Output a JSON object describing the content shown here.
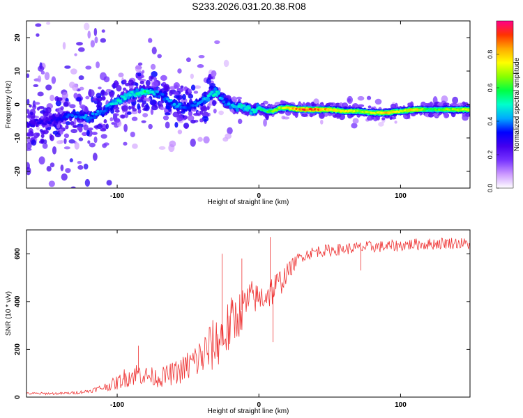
{
  "chart_data": [
    {
      "type": "heatmap",
      "title": "S233.2026.031.20.38.R08",
      "xlabel": "Height of straight line (km)",
      "ylabel": "Frequency (Hz)",
      "xlim": [
        -164,
        149
      ],
      "ylim": [
        -25,
        25
      ],
      "x_ticks": [
        -100,
        0,
        100
      ],
      "y_ticks": [
        -20,
        -10,
        0,
        10,
        20
      ],
      "colorbar": {
        "label": "Normalized spectral amplitude",
        "range": [
          0.0,
          1.0
        ],
        "ticks": [
          "0.0",
          "0.2",
          "0.4",
          "0.6",
          "0.8"
        ],
        "colors": [
          "#ffffff",
          "#cc99ff",
          "#7733ff",
          "#4400ee",
          "#0000ff",
          "#00aaff",
          "#00ffcc",
          "#00ff44",
          "#88ff00",
          "#ffff00",
          "#ffaa00",
          "#ff3300",
          "#ff0088"
        ]
      },
      "ridge": {
        "x": [
          -164,
          -150,
          -140,
          -130,
          -120,
          -110,
          -100,
          -90,
          -80,
          -70,
          -60,
          -50,
          -40,
          -30,
          -25,
          -20,
          -15,
          -10,
          -5,
          0,
          5,
          10,
          15,
          20,
          30,
          40,
          50,
          60,
          70,
          80,
          90,
          100,
          110,
          120,
          130,
          140,
          149
        ],
        "freq": [
          -6,
          -5,
          -4,
          -3,
          -4,
          -2,
          1,
          3,
          4,
          3,
          0,
          -1,
          1,
          4,
          1,
          0,
          -1,
          -1,
          -2,
          -1,
          -2,
          -2,
          -1,
          -1,
          -1.5,
          -1.5,
          -1.5,
          -2,
          -2,
          -2.5,
          -2.5,
          -2,
          -1.5,
          -1.5,
          -1.5,
          -1.5,
          -1.5
        ],
        "amplitude": [
          0.3,
          0.3,
          0.35,
          0.4,
          0.45,
          0.4,
          0.55,
          0.5,
          0.6,
          0.4,
          0.45,
          0.4,
          0.45,
          0.55,
          0.4,
          0.45,
          0.5,
          0.55,
          0.5,
          0.55,
          0.6,
          0.7,
          0.75,
          0.8,
          0.95,
          0.95,
          0.85,
          0.8,
          0.75,
          0.75,
          0.85,
          0.75,
          0.85,
          0.6,
          0.7,
          0.75,
          0.8
        ]
      }
    },
    {
      "type": "line",
      "xlabel": "Height of straight line (km)",
      "ylabel": "SNR (10 * v/v)",
      "xlim": [
        -164,
        149
      ],
      "ylim": [
        0,
        700
      ],
      "x_ticks": [
        -100,
        0,
        100
      ],
      "y_ticks": [
        0,
        200,
        400,
        600
      ],
      "line_color": "#ee3333",
      "series": [
        {
          "name": "SNR",
          "x": [
            -164,
            -150,
            -140,
            -130,
            -120,
            -110,
            -100,
            -95,
            -90,
            -85,
            -80,
            -75,
            -70,
            -65,
            -60,
            -55,
            -50,
            -45,
            -40,
            -35,
            -30,
            -25,
            -20,
            -15,
            -10,
            -5,
            0,
            5,
            10,
            15,
            20,
            25,
            30,
            40,
            50,
            60,
            70,
            80,
            90,
            100,
            110,
            120,
            130,
            140,
            149
          ],
          "y": [
            15,
            15,
            15,
            18,
            25,
            40,
            60,
            80,
            90,
            100,
            90,
            85,
            80,
            90,
            100,
            110,
            130,
            150,
            170,
            200,
            230,
            260,
            300,
            340,
            380,
            420,
            410,
            430,
            450,
            480,
            520,
            560,
            590,
            610,
            615,
            620,
            625,
            630,
            630,
            635,
            640,
            640,
            645,
            645,
            640
          ],
          "noise": [
            5,
            5,
            5,
            6,
            8,
            15,
            30,
            40,
            45,
            50,
            40,
            40,
            40,
            45,
            50,
            55,
            70,
            80,
            90,
            110,
            110,
            120,
            120,
            100,
            90,
            70,
            60,
            70,
            70,
            60,
            40,
            30,
            25,
            25,
            25,
            25,
            25,
            25,
            25,
            25,
            25,
            25,
            25,
            25,
            25
          ]
        }
      ],
      "annotations": [
        {
          "x": -26,
          "y": 600
        },
        {
          "x": -12,
          "y": 580
        },
        {
          "x": 8,
          "y": 670
        },
        {
          "x": -85,
          "y": 215
        },
        {
          "x": 72,
          "y": 530
        },
        {
          "x": 10,
          "y": 230
        }
      ]
    }
  ]
}
